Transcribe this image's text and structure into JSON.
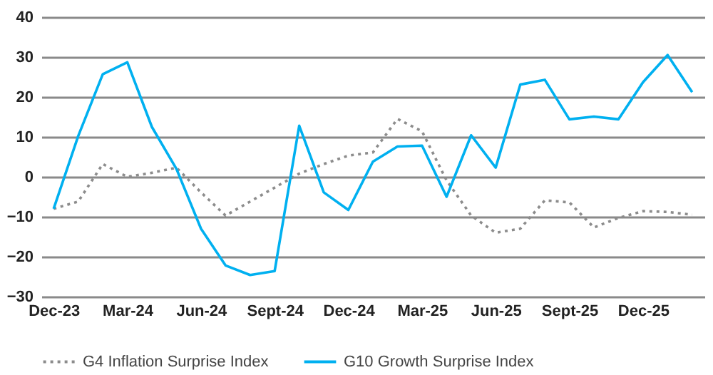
{
  "chart_data": {
    "type": "line",
    "categories": [
      "Dec-23",
      null,
      null,
      "Mar-24",
      null,
      null,
      "Jun-24",
      null,
      null,
      "Sept-24",
      null,
      null,
      "Dec-24",
      null,
      null,
      "Mar-25",
      null,
      null,
      "Jun-25",
      null,
      null,
      "Sept-25",
      null,
      null,
      "Dec-25",
      null,
      null
    ],
    "series": [
      {
        "name": "G4 Inflation Surprise Index",
        "color": "#8c8c8c",
        "line_style": "dotted",
        "values": [
          -8,
          -6.2,
          3.2,
          0,
          1,
          2.3,
          -3.9,
          -9.7,
          -6.2,
          -2.7,
          0.8,
          3.2,
          5.3,
          6.1,
          14.5,
          11.4,
          -0.9,
          -9.7,
          -14,
          -13,
          -5.9,
          -6.4,
          -12.7,
          -10.3,
          -8.6,
          -8.8,
          -9.5
        ]
      },
      {
        "name": "G10 Growth Surprise Index",
        "color": "#00b0f0",
        "line_style": "solid",
        "values": [
          -8,
          10.2,
          25.7,
          28.7,
          12.5,
          2,
          -13,
          -22.2,
          -24.6,
          -23.6,
          12.8,
          -3.9,
          -8.3,
          3.8,
          7.6,
          7.8,
          -5,
          10.4,
          2.3,
          23.1,
          24.3,
          14.4,
          15.1,
          14.4,
          23.7,
          30.5,
          21.2
        ]
      }
    ],
    "ylim": [
      -30,
      40
    ],
    "yticks": [
      -30,
      -20,
      -10,
      0,
      10,
      20,
      30,
      40
    ],
    "grid": "y",
    "legend": "bottom",
    "marker": "none"
  }
}
